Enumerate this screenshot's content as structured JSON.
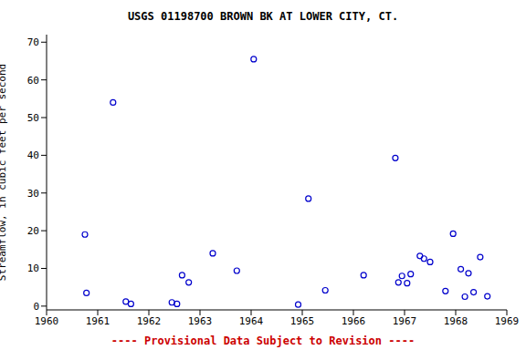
{
  "chart_data": {
    "type": "scatter",
    "title": "USGS 01198700 BROWN BK AT LOWER CITY, CT.",
    "subtitle": "---- Provisional Data Subject to Revision ----",
    "y_label": "Streamflow, in cubic feet per second",
    "x": [
      1960.75,
      1960.78,
      1961.3,
      1961.55,
      1961.65,
      1962.45,
      1962.55,
      1962.65,
      1962.78,
      1963.25,
      1963.72,
      1964.05,
      1964.92,
      1965.12,
      1965.45,
      1966.2,
      1966.82,
      1966.88,
      1966.95,
      1967.05,
      1967.12,
      1967.3,
      1967.38,
      1967.5,
      1967.8,
      1967.95,
      1968.1,
      1968.18,
      1968.25,
      1968.35,
      1968.48,
      1968.62
    ],
    "values": [
      19,
      3.5,
      54,
      1.2,
      0.6,
      1.0,
      0.6,
      8.2,
      6.3,
      14,
      9.4,
      65.5,
      0.4,
      28.5,
      4.2,
      8.2,
      39.3,
      6.3,
      8.0,
      6.1,
      8.5,
      13.3,
      12.6,
      11.7,
      4.0,
      19.2,
      9.8,
      2.5,
      8.7,
      3.7,
      13.0,
      2.6
    ],
    "color": "#0000cc",
    "marker": "open_circle",
    "xlim": [
      1960,
      1969
    ],
    "xticks": [
      1960,
      1961,
      1962,
      1963,
      1964,
      1965,
      1966,
      1967,
      1968,
      1969
    ],
    "ylim": [
      -1,
      72
    ],
    "yticks": [
      0,
      10,
      20,
      30,
      40,
      50,
      60,
      70
    ],
    "grid": false
  }
}
